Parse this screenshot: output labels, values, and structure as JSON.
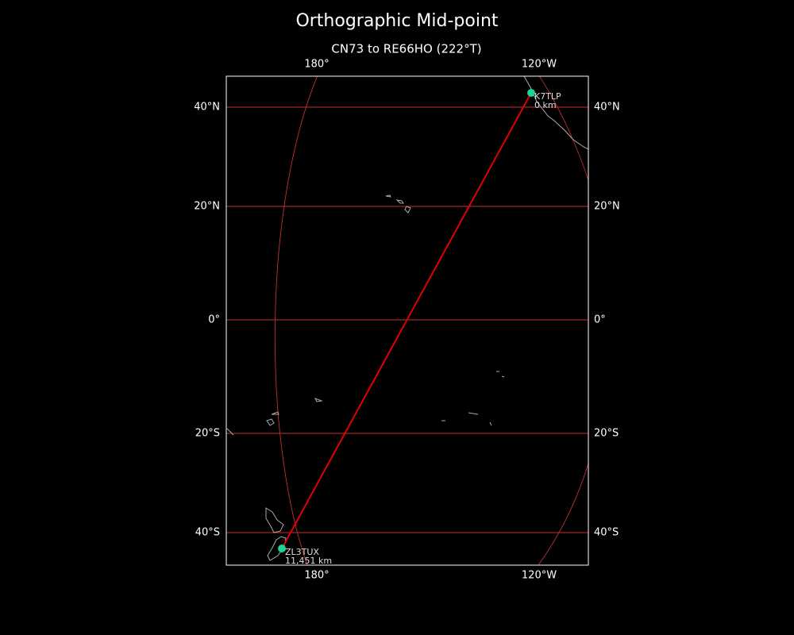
{
  "header": {
    "title": "Orthographic Mid-point",
    "subtitle": "CN73 to RE66HO (222°T)"
  },
  "map": {
    "longitude_labels": [
      "180°",
      "120°W"
    ],
    "latitude_labels": [
      "40°N",
      "20°N",
      "0°",
      "20°S",
      "40°S"
    ],
    "stations": [
      {
        "call": "K7TLP",
        "distance": "0 km"
      },
      {
        "call": "ZL3TUX",
        "distance": "11,451 km"
      }
    ]
  }
}
